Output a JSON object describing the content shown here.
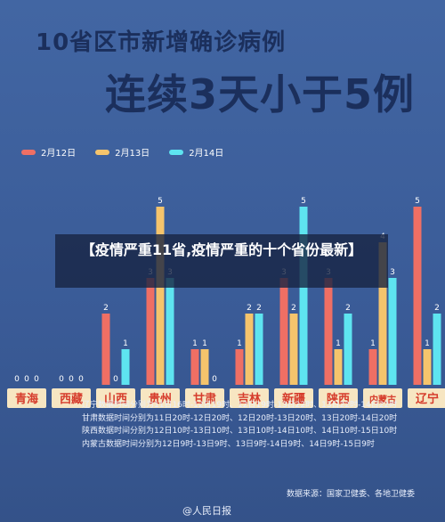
{
  "title_line1": "10省区市新增确诊病例",
  "title_line2": "连续3天小于5例",
  "overlay_title": "【疫情严重11省,疫情严重的十个省份最新】",
  "notes": [
    "辽宁数据时间分别为11日16时-12日19时、12日19时-13日22时、13日22时-14日22时",
    "甘肃数据时间分别为11日20时-12日20时、12日20时-13日20时、13日20时-14日20时",
    "陕西数据时间分别为12日10时-13日10时、13日10时-14日10时、14日10时-15日10时",
    "内蒙古数据时间分别为12日9时-13日9时、13日9时-14日9时、14日9时-15日9时"
  ],
  "source": "数据来源：国家卫健委、各地卫健委",
  "watermark": "@人民日报",
  "colors": {
    "series": [
      "#ef6f64",
      "#f5c46c",
      "#5ee4f0"
    ],
    "axis_box": "#f7e6c2",
    "axis_text": "#d63c2c",
    "value_label": "#ffffff"
  },
  "chart_data": {
    "type": "bar",
    "categories": [
      "青海",
      "西藏",
      "山西",
      "贵州",
      "甘肃",
      "吉林",
      "新疆",
      "陕西",
      "内蒙古",
      "辽宁"
    ],
    "series": [
      {
        "name": "2月12日",
        "values": [
          0,
          0,
          2,
          3,
          1,
          1,
          3,
          3,
          1,
          5
        ]
      },
      {
        "name": "2月13日",
        "values": [
          0,
          0,
          0,
          5,
          1,
          2,
          2,
          1,
          4,
          1
        ]
      },
      {
        "name": "2月14日",
        "values": [
          0,
          0,
          1,
          3,
          0,
          2,
          5,
          2,
          3,
          2
        ]
      }
    ],
    "ylim": [
      0,
      5
    ],
    "grid": false,
    "legend_position": "top-left"
  }
}
